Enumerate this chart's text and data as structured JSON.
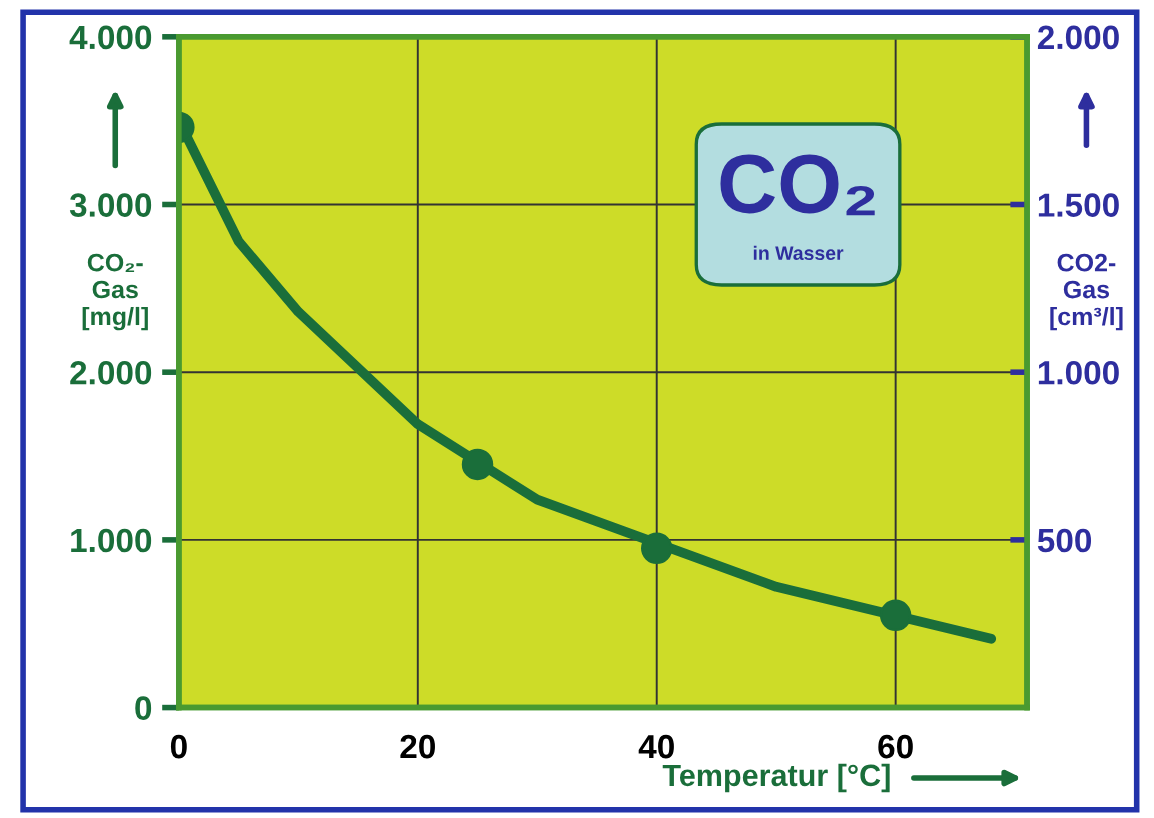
{
  "chart_data": {
    "type": "scatter",
    "xlabel": "Temperatur [°C]",
    "ylabel": "CO₂-\nGas\n[mg/l]",
    "y2label": "CO2-\nGas\n[cm³/l]",
    "annotations": [
      "CO₂",
      "in Wasser"
    ],
    "series": [
      {
        "color": "#1a6e3a",
        "x": [
          0,
          25,
          40,
          60
        ],
        "values": [
          3460,
          1450,
          950,
          550
        ]
      },
      {
        "type": "line",
        "color": "#1a6e3a",
        "marker": "none",
        "x": [
          0,
          5,
          10,
          20,
          30,
          50,
          68
        ],
        "values": [
          3500,
          2780,
          2360,
          1690,
          1240,
          720,
          410
        ]
      }
    ],
    "xlim": [
      0,
      71
    ],
    "xticks": [
      0,
      20,
      40,
      60
    ],
    "ylim": [
      0,
      4000
    ],
    "yticks": [
      {
        "value": 0,
        "label": "0"
      },
      {
        "value": 1000,
        "label": "1.000"
      },
      {
        "value": 2000,
        "label": "2.000"
      },
      {
        "value": 3000,
        "label": "3.000"
      },
      {
        "value": 4000,
        "label": "4.000"
      }
    ],
    "y2lim": [
      0,
      2000
    ],
    "y2ticks": [
      {
        "value": 500,
        "label": "500"
      },
      {
        "value": 1000,
        "label": "1.000"
      },
      {
        "value": 1500,
        "label": "1.500"
      },
      {
        "value": 2000,
        "label": "2.000"
      }
    ],
    "grid": true,
    "legend": false
  }
}
